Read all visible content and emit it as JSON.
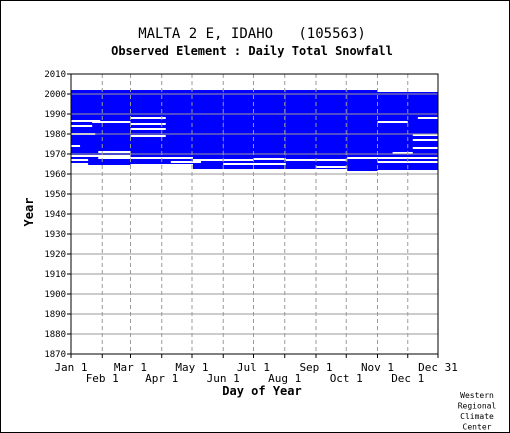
{
  "chart_data": {
    "type": "heatmap",
    "title": "MALTA 2 E, IDAHO   (105563)",
    "subtitle": "Observed Element : Daily Total Snowfall",
    "xlabel": "Day of Year",
    "ylabel": "Year",
    "xlim": [
      1,
      365
    ],
    "ylim": [
      1870,
      2010
    ],
    "grid": true,
    "x_ticks_top_row": [
      {
        "label": "Jan 1",
        "day": 1
      },
      {
        "label": "Mar 1",
        "day": 60
      },
      {
        "label": "May 1",
        "day": 121
      },
      {
        "label": "Jul 1",
        "day": 182
      },
      {
        "label": "Sep 1",
        "day": 244
      },
      {
        "label": "Nov 1",
        "day": 305
      },
      {
        "label": "Dec 31",
        "day": 365
      }
    ],
    "x_ticks_bottom_row": [
      {
        "label": "Feb 1",
        "day": 32
      },
      {
        "label": "Apr 1",
        "day": 91
      },
      {
        "label": "Jun 1",
        "day": 152
      },
      {
        "label": "Aug 1",
        "day": 213
      },
      {
        "label": "Oct 1",
        "day": 274
      },
      {
        "label": "Dec 1",
        "day": 335
      }
    ],
    "y_ticks": [
      "1870",
      "1880",
      "1890",
      "1900",
      "1910",
      "1920",
      "1930",
      "1940",
      "1950",
      "1960",
      "1970",
      "1980",
      "1990",
      "2000",
      "2010"
    ],
    "data_color": "#0000ff",
    "coverage": [
      {
        "day_start": 1,
        "day_end": 60,
        "year_start": 1964.5,
        "year_end": 2002
      },
      {
        "day_start": 60,
        "day_end": 122,
        "year_start": 1965,
        "year_end": 2002
      },
      {
        "day_start": 122,
        "day_end": 152,
        "year_start": 1962.5,
        "year_end": 2002
      },
      {
        "day_start": 152,
        "day_end": 182,
        "year_start": 1962.5,
        "year_end": 2002
      },
      {
        "day_start": 182,
        "day_end": 214,
        "year_start": 1962.5,
        "year_end": 2002
      },
      {
        "day_start": 214,
        "day_end": 244,
        "year_start": 1962.5,
        "year_end": 2002
      },
      {
        "day_start": 244,
        "day_end": 275,
        "year_start": 1962.5,
        "year_end": 2002
      },
      {
        "day_start": 275,
        "day_end": 305,
        "year_start": 1961.5,
        "year_end": 2002
      },
      {
        "day_start": 305,
        "day_end": 365,
        "year_start": 1962,
        "year_end": 2001
      }
    ],
    "gaps": [
      {
        "day_start": 1,
        "day_end": 30,
        "year": 1986.5
      },
      {
        "day_start": 1,
        "day_end": 22,
        "year": 1984
      },
      {
        "day_start": 1,
        "day_end": 25,
        "year": 1980
      },
      {
        "day_start": 22,
        "day_end": 60,
        "year": 1986
      },
      {
        "day_start": 1,
        "day_end": 10,
        "year": 1974
      },
      {
        "day_start": 1,
        "day_end": 60,
        "year": 1969
      },
      {
        "day_start": 28,
        "day_end": 60,
        "year": 1971
      },
      {
        "day_start": 1,
        "day_end": 18,
        "year": 1967
      },
      {
        "day_start": 28,
        "day_end": 60,
        "year": 1968
      },
      {
        "day_start": 1,
        "day_end": 18,
        "year": 1965
      },
      {
        "day_start": 60,
        "day_end": 95,
        "year": 1988
      },
      {
        "day_start": 60,
        "day_end": 95,
        "year": 1985
      },
      {
        "day_start": 60,
        "day_end": 95,
        "year": 1982.5
      },
      {
        "day_start": 60,
        "day_end": 95,
        "year": 1979
      },
      {
        "day_start": 60,
        "day_end": 122,
        "year": 1968
      },
      {
        "day_start": 100,
        "day_end": 130,
        "year": 1966
      },
      {
        "day_start": 122,
        "day_end": 182,
        "year": 1967
      },
      {
        "day_start": 152,
        "day_end": 214,
        "year": 1965
      },
      {
        "day_start": 182,
        "day_end": 214,
        "year": 1967.5
      },
      {
        "day_start": 214,
        "day_end": 275,
        "year": 1967
      },
      {
        "day_start": 244,
        "day_end": 275,
        "year": 1963.5
      },
      {
        "day_start": 275,
        "day_end": 305,
        "year": 1968
      },
      {
        "day_start": 305,
        "day_end": 335,
        "year": 1986
      },
      {
        "day_start": 305,
        "day_end": 365,
        "year": 1968
      },
      {
        "day_start": 305,
        "day_end": 365,
        "year": 1966
      },
      {
        "day_start": 340,
        "day_end": 365,
        "year": 1977
      },
      {
        "day_start": 340,
        "day_end": 365,
        "year": 1979.5
      },
      {
        "day_start": 340,
        "day_end": 365,
        "year": 1973
      },
      {
        "day_start": 345,
        "day_end": 365,
        "year": 1988
      },
      {
        "day_start": 320,
        "day_end": 340,
        "year": 1970.5
      }
    ]
  },
  "footer": {
    "credit_lines": [
      "Western",
      "Regional",
      "Climate",
      "Center"
    ]
  }
}
